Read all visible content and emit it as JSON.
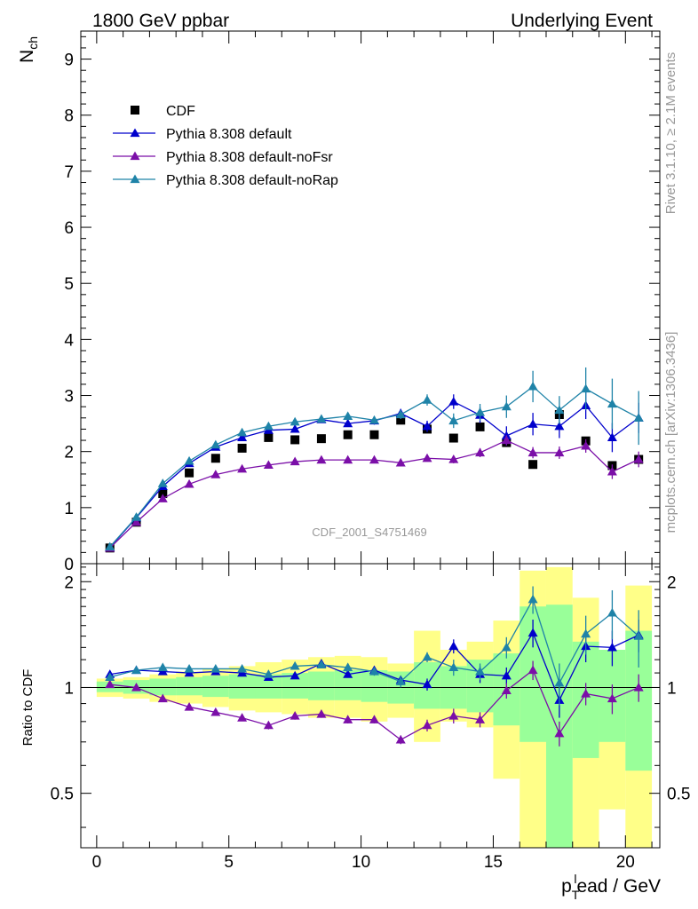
{
  "header": {
    "left": "1800 GeV ppbar",
    "right": "Underlying Event"
  },
  "side_labels": {
    "top": "Rivet 3.1.10, ≥ 2.1M events",
    "bottom": "mcplots.cern.ch [arXiv:1306.3436]"
  },
  "watermark": "CDF_2001_S4751469",
  "chart_data": [
    {
      "type": "scatter",
      "ylabel_main": "N",
      "ylabel_sub": "ch",
      "xlim": [
        -0.6,
        21.3
      ],
      "ylim": [
        0,
        9.5
      ],
      "yticks": [
        0,
        1,
        2,
        3,
        4,
        5,
        6,
        7,
        8,
        9
      ],
      "legend_position": "top-left",
      "x": [
        0.5,
        1.5,
        2.5,
        3.5,
        4.5,
        5.5,
        6.5,
        7.5,
        8.5,
        9.5,
        10.5,
        11.5,
        12.5,
        13.5,
        14.5,
        15.5,
        16.5,
        17.5,
        18.5,
        19.5,
        20.5
      ],
      "series": [
        {
          "name": "CDF",
          "color": "#000000",
          "marker": "square",
          "line": false,
          "values": [
            0.28,
            0.74,
            1.25,
            1.62,
            1.88,
            2.06,
            2.25,
            2.21,
            2.23,
            2.3,
            2.3,
            2.56,
            2.4,
            2.24,
            2.44,
            2.16,
            1.77,
            2.66,
            2.19,
            1.75,
            1.86
          ]
        },
        {
          "name": "Pythia 8.308 default",
          "color": "#0000cc",
          "marker": "triangle",
          "line": true,
          "values": [
            0.29,
            0.82,
            1.38,
            1.79,
            2.08,
            2.25,
            2.38,
            2.4,
            2.57,
            2.5,
            2.55,
            2.68,
            2.45,
            2.89,
            2.65,
            2.28,
            2.49,
            2.45,
            2.82,
            2.25,
            2.6
          ],
          "err": [
            0.01,
            0.01,
            0.02,
            0.02,
            0.03,
            0.03,
            0.04,
            0.05,
            0.05,
            0.06,
            0.07,
            0.08,
            0.1,
            0.13,
            0.14,
            0.17,
            0.2,
            0.21,
            0.24,
            0.26,
            0.27
          ]
        },
        {
          "name": "Pythia 8.308 default-noFsr",
          "color": "#7b0fa8",
          "marker": "triangle",
          "line": true,
          "values": [
            0.28,
            0.74,
            1.16,
            1.42,
            1.59,
            1.69,
            1.76,
            1.82,
            1.85,
            1.85,
            1.85,
            1.8,
            1.88,
            1.86,
            1.98,
            2.2,
            1.98,
            1.98,
            2.1,
            1.64,
            1.86
          ],
          "err": [
            0.01,
            0.01,
            0.02,
            0.02,
            0.02,
            0.03,
            0.03,
            0.03,
            0.04,
            0.04,
            0.05,
            0.05,
            0.06,
            0.07,
            0.08,
            0.09,
            0.1,
            0.11,
            0.12,
            0.13,
            0.14
          ]
        },
        {
          "name": "Pythia 8.308 default-noRap",
          "color": "#1f83a8",
          "marker": "triangle",
          "line": true,
          "values": [
            0.3,
            0.83,
            1.43,
            1.83,
            2.12,
            2.34,
            2.45,
            2.53,
            2.58,
            2.63,
            2.56,
            2.66,
            2.92,
            2.55,
            2.7,
            2.8,
            3.16,
            2.74,
            3.12,
            2.85,
            2.6
          ],
          "err": [
            0.01,
            0.01,
            0.02,
            0.02,
            0.03,
            0.03,
            0.04,
            0.05,
            0.05,
            0.06,
            0.07,
            0.08,
            0.1,
            0.13,
            0.15,
            0.2,
            0.28,
            0.25,
            0.38,
            0.45,
            0.48
          ]
        }
      ]
    },
    {
      "type": "scatter",
      "ylabel": "Ratio to CDF",
      "xlabel_main": "p",
      "xlabel_sub": "T",
      "xlabel_sup": "l",
      "xlabel_rest": "ead / GeV",
      "xlim": [
        -0.6,
        21.3
      ],
      "ylim": [
        0.35,
        2.25
      ],
      "yticks": [
        0.5,
        1,
        2
      ],
      "ytick_labels": [
        "0.5",
        "1",
        "2"
      ],
      "xticks": [
        0,
        5,
        10,
        15,
        20
      ],
      "x": [
        0.5,
        1.5,
        2.5,
        3.5,
        4.5,
        5.5,
        6.5,
        7.5,
        8.5,
        9.5,
        10.5,
        11.5,
        12.5,
        13.5,
        14.5,
        15.5,
        16.5,
        17.5,
        18.5,
        19.5,
        20.5
      ],
      "bands": {
        "yellow_color": "#ffff88",
        "green_color": "#99ff99",
        "yellow_lo": [
          0.94,
          0.93,
          0.91,
          0.9,
          0.88,
          0.86,
          0.85,
          0.84,
          0.82,
          0.82,
          0.8,
          0.82,
          0.7,
          0.8,
          0.77,
          0.55,
          0.3,
          0.25,
          0.25,
          0.45,
          0.25
        ],
        "yellow_hi": [
          1.06,
          1.07,
          1.09,
          1.11,
          1.13,
          1.15,
          1.18,
          1.2,
          1.22,
          1.23,
          1.22,
          1.17,
          1.45,
          1.28,
          1.35,
          1.55,
          2.15,
          2.2,
          1.8,
          1.25,
          1.95
        ],
        "green_lo": [
          0.97,
          0.96,
          0.95,
          0.95,
          0.94,
          0.93,
          0.93,
          0.93,
          0.92,
          0.92,
          0.91,
          0.9,
          0.87,
          0.87,
          0.85,
          0.78,
          0.7,
          0.3,
          0.63,
          0.7,
          0.58
        ],
        "green_hi": [
          1.04,
          1.05,
          1.06,
          1.07,
          1.08,
          1.09,
          1.09,
          1.1,
          1.11,
          1.12,
          1.12,
          1.11,
          1.18,
          1.15,
          1.2,
          1.25,
          1.7,
          1.72,
          1.35,
          1.28,
          1.45
        ]
      },
      "series": [
        {
          "name": "Pythia 8.308 default",
          "color": "#0000cc",
          "values": [
            1.09,
            1.12,
            1.11,
            1.1,
            1.11,
            1.1,
            1.07,
            1.08,
            1.17,
            1.09,
            1.12,
            1.05,
            1.02,
            1.31,
            1.09,
            1.08,
            1.43,
            0.92,
            1.31,
            1.3,
            1.41
          ],
          "err": [
            0.01,
            0.01,
            0.01,
            0.01,
            0.01,
            0.02,
            0.02,
            0.02,
            0.02,
            0.02,
            0.02,
            0.03,
            0.04,
            0.06,
            0.06,
            0.06,
            0.13,
            0.1,
            0.13,
            0.15,
            0.15
          ]
        },
        {
          "name": "Pythia 8.308 default-noFsr",
          "color": "#7b0fa8",
          "values": [
            1.02,
            1.0,
            0.93,
            0.88,
            0.85,
            0.82,
            0.78,
            0.83,
            0.84,
            0.81,
            0.81,
            0.71,
            0.78,
            0.83,
            0.81,
            0.98,
            1.12,
            0.74,
            0.96,
            0.93,
            1.0
          ],
          "err": [
            0.01,
            0.01,
            0.01,
            0.01,
            0.01,
            0.01,
            0.02,
            0.02,
            0.02,
            0.02,
            0.02,
            0.02,
            0.03,
            0.04,
            0.04,
            0.05,
            0.07,
            0.06,
            0.07,
            0.09,
            0.09
          ]
        },
        {
          "name": "Pythia 8.308 default-noRap",
          "color": "#1f83a8",
          "values": [
            1.07,
            1.12,
            1.14,
            1.13,
            1.13,
            1.13,
            1.09,
            1.15,
            1.16,
            1.14,
            1.11,
            1.04,
            1.22,
            1.14,
            1.11,
            1.3,
            1.78,
            1.03,
            1.42,
            1.63,
            1.4
          ],
          "err": [
            0.01,
            0.01,
            0.01,
            0.01,
            0.02,
            0.02,
            0.02,
            0.02,
            0.02,
            0.03,
            0.03,
            0.04,
            0.04,
            0.06,
            0.06,
            0.09,
            0.16,
            0.14,
            0.18,
            0.26,
            0.26
          ]
        }
      ]
    }
  ]
}
